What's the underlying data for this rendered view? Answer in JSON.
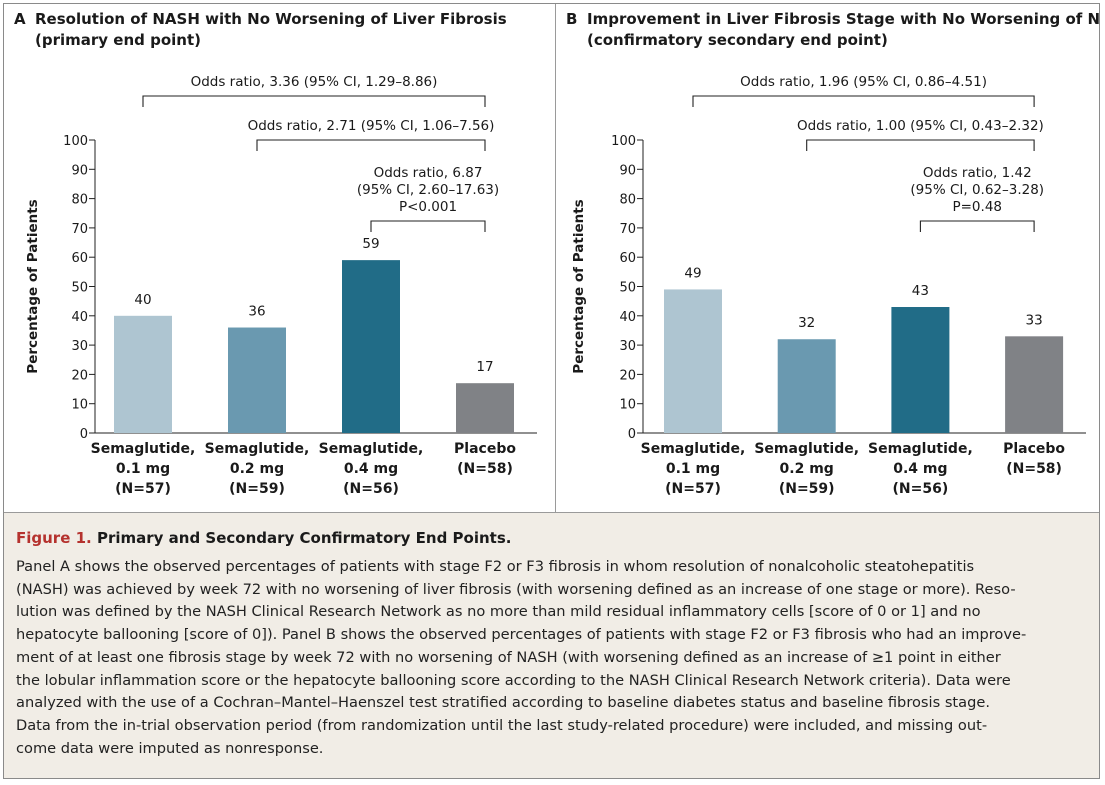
{
  "chart_data": [
    {
      "type": "bar",
      "panel_letter": "A",
      "title": [
        "Resolution of NASH with No Worsening of Liver Fibrosis",
        "(primary end point)"
      ],
      "ylabel": "Percentage of Patients",
      "xlabel": "",
      "ylim": [
        0,
        100
      ],
      "yticks": [
        0,
        10,
        20,
        30,
        40,
        50,
        60,
        70,
        80,
        90,
        100
      ],
      "categories": [
        [
          "Semaglutide,",
          "0.1 mg",
          "(N=57)"
        ],
        [
          "Semaglutide,",
          "0.2 mg",
          "(N=59)"
        ],
        [
          "Semaglutide,",
          "0.4 mg",
          "(N=56)"
        ],
        [
          "Placebo",
          "(N=58)"
        ]
      ],
      "values": [
        40,
        36,
        59,
        17
      ],
      "value_labels": [
        "40",
        "36",
        "59",
        "17"
      ],
      "colors": [
        "#aec5d1",
        "#6a99b0",
        "#216c87",
        "#808286"
      ],
      "annotations": [
        {
          "from": 0,
          "to": 3,
          "text": [
            "Odds ratio, 3.36 (95% CI, 1.29–8.86)"
          ]
        },
        {
          "from": 1,
          "to": 3,
          "text": [
            "Odds ratio, 2.71 (95% CI, 1.06–7.56)"
          ]
        },
        {
          "from": 2,
          "to": 3,
          "text": [
            "Odds ratio, 6.87",
            "(95% CI, 2.60–17.63)",
            "P<0.001"
          ]
        }
      ],
      "grid": false
    },
    {
      "type": "bar",
      "panel_letter": "B",
      "title": [
        "Improvement in Liver Fibrosis Stage with No Worsening of NASH",
        "(confirmatory secondary end point)"
      ],
      "ylabel": "Percentage of Patients",
      "xlabel": "",
      "ylim": [
        0,
        100
      ],
      "yticks": [
        0,
        10,
        20,
        30,
        40,
        50,
        60,
        70,
        80,
        90,
        100
      ],
      "categories": [
        [
          "Semaglutide,",
          "0.1 mg",
          "(N=57)"
        ],
        [
          "Semaglutide,",
          "0.2 mg",
          "(N=59)"
        ],
        [
          "Semaglutide,",
          "0.4 mg",
          "(N=56)"
        ],
        [
          "Placebo",
          "(N=58)"
        ]
      ],
      "values": [
        49,
        32,
        43,
        33
      ],
      "value_labels": [
        "49",
        "32",
        "43",
        "33"
      ],
      "colors": [
        "#aec5d1",
        "#6a99b0",
        "#216c87",
        "#808286"
      ],
      "annotations": [
        {
          "from": 0,
          "to": 3,
          "text": [
            "Odds ratio, 1.96 (95% CI, 0.86–4.51)"
          ]
        },
        {
          "from": 1,
          "to": 3,
          "text": [
            "Odds ratio, 1.00 (95% CI, 0.43–2.32)"
          ]
        },
        {
          "from": 2,
          "to": 3,
          "text": [
            "Odds ratio, 1.42",
            "(95% CI, 0.62–3.28)",
            "P=0.48"
          ]
        }
      ],
      "grid": false
    }
  ],
  "caption": {
    "figure_label": "Figure 1.",
    "title": "Primary and Secondary Confirmatory End Points.",
    "lines": [
      "Panel A shows the observed percentages of patients with stage F2 or F3 fibrosis in whom resolution of nonalcoholic steatohepatitis",
      "(NASH) was achieved by week 72 with no worsening of liver fibrosis (with worsening defined as an increase of one stage or more). Reso-",
      "lution was defined by the NASH Clinical Research Network as no more than mild residual inflammatory cells [score of 0 or 1] and no",
      "hepatocyte ballooning [score of 0]). Panel B shows the observed percentages of patients with stage F2 or F3 fibrosis who had an improve-",
      "ment of at least one fibrosis stage by week 72 with no worsening of NASH (with worsening defined as an increase of ≥1 point in either",
      "the lobular inflammation score or the hepatocyte ballooning score according to the NASH Clinical Research Network criteria). Data were",
      "analyzed with the use of a Cochran–Mantel–Haenszel test stratified according to baseline diabetes status and baseline fibrosis stage.",
      "Data from the in-trial observation period (from randomization until the last study-related procedure) were included, and missing out-",
      "come data were imputed as nonresponse."
    ]
  }
}
